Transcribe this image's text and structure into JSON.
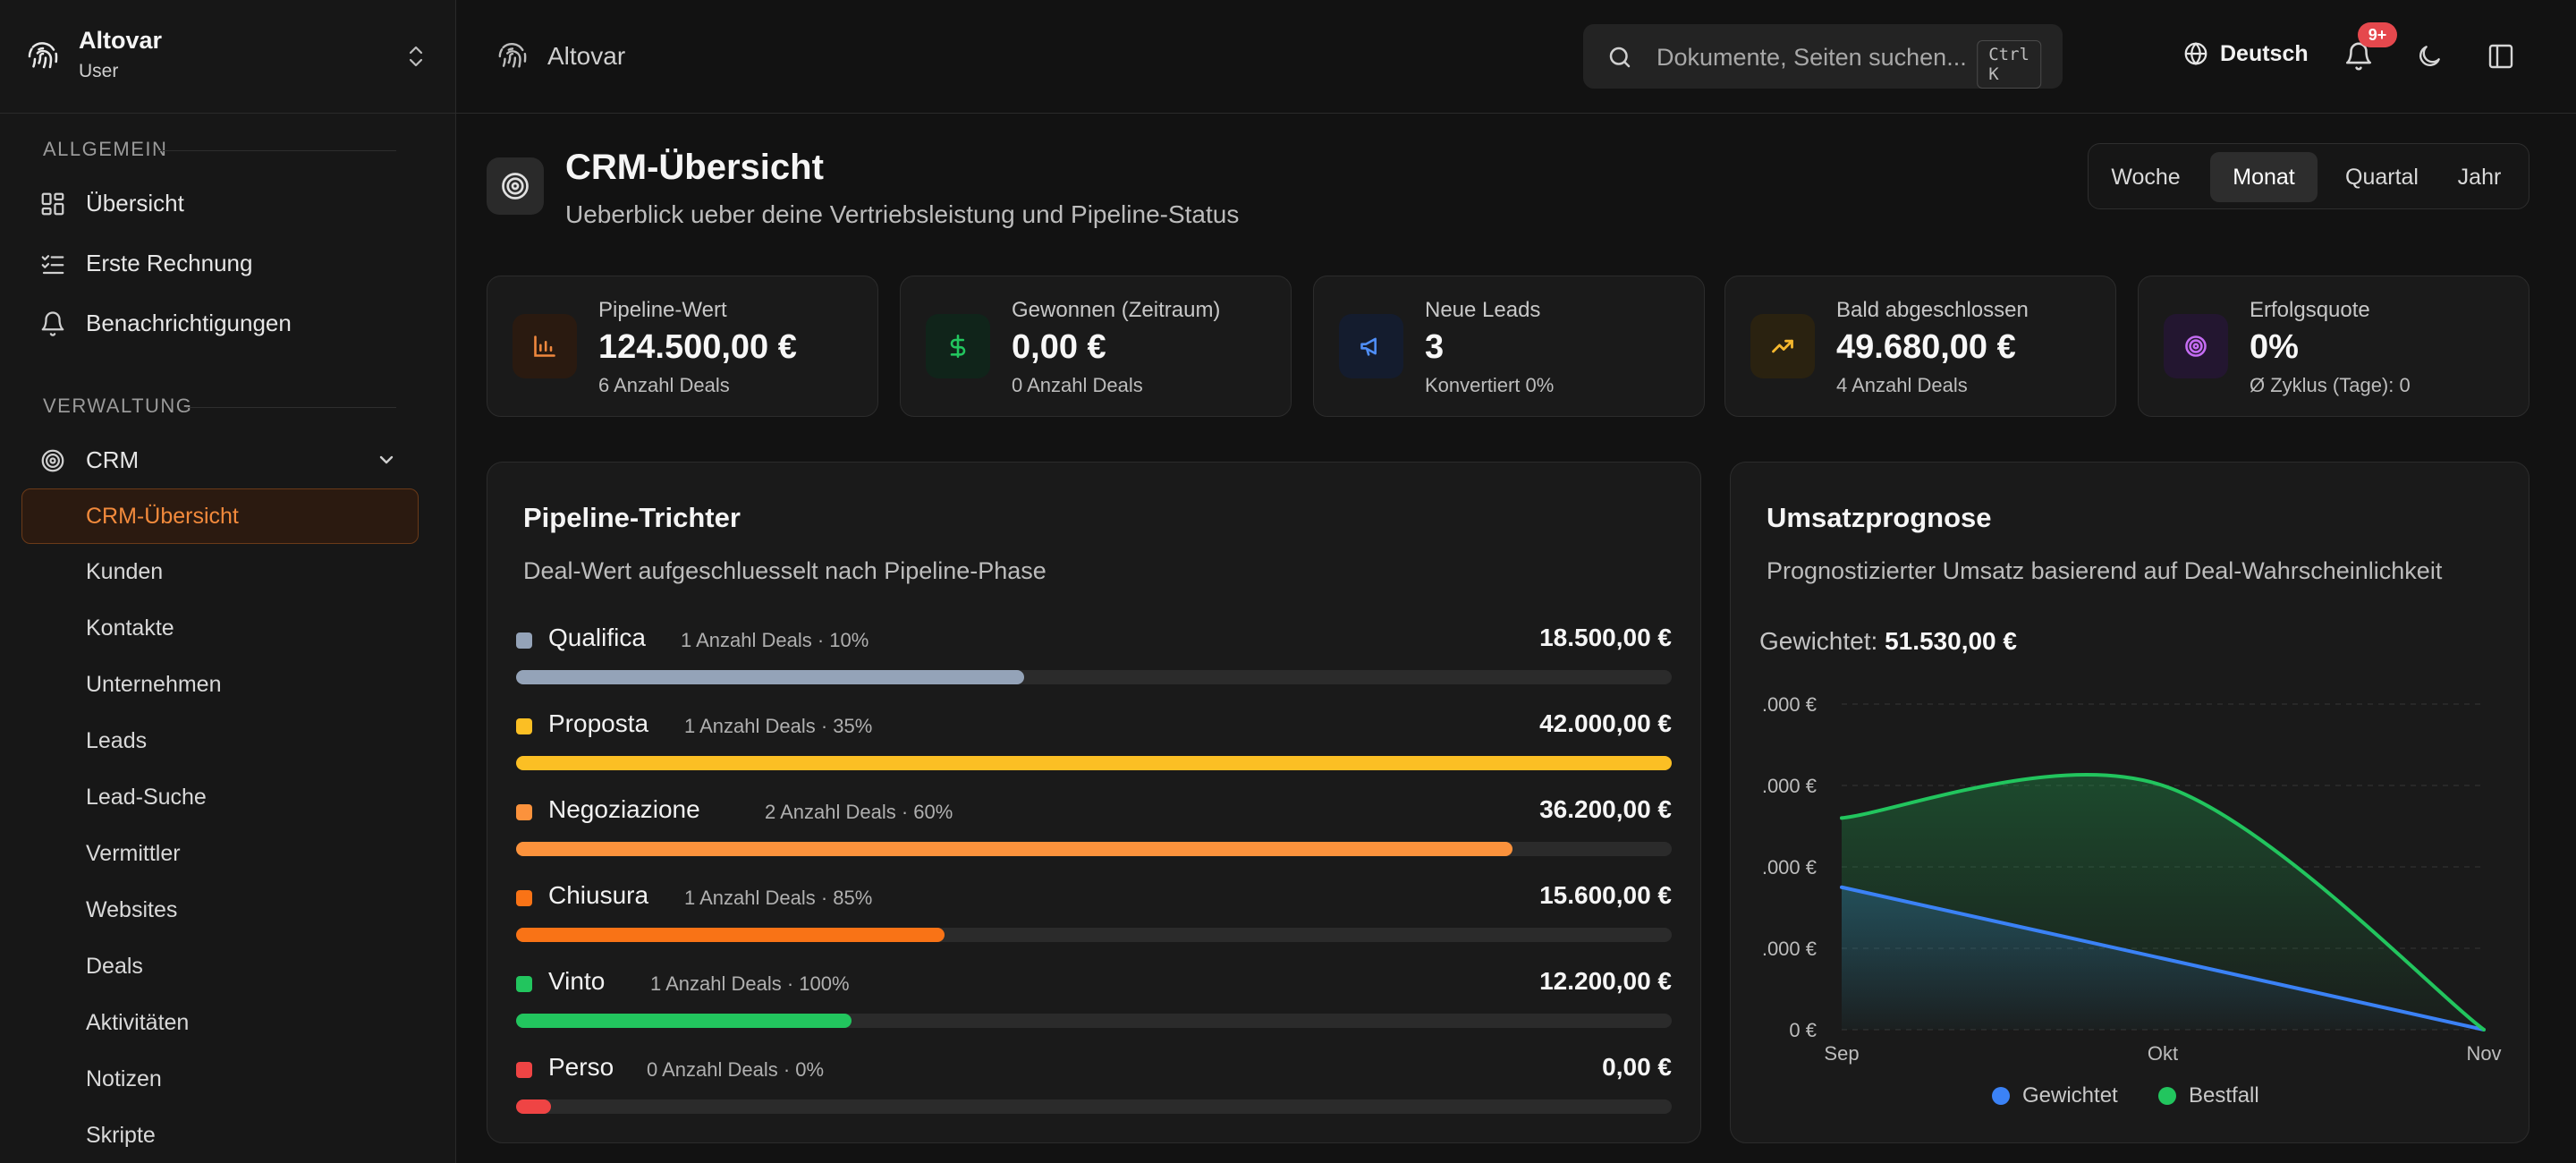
{
  "workspace": {
    "name": "Altovar",
    "role": "User"
  },
  "sidebar": {
    "section_general": "Allgemein",
    "general_items": [
      {
        "label": "Übersicht",
        "icon": "dashboard-icon"
      },
      {
        "label": "Erste Rechnung",
        "icon": "checklist-icon"
      },
      {
        "label": "Benachrichtigungen",
        "icon": "bell-icon"
      }
    ],
    "section_admin": "Verwaltung",
    "crm_label": "CRM",
    "crm_items": [
      {
        "label": "CRM-Übersicht",
        "active": true
      },
      {
        "label": "Kunden"
      },
      {
        "label": "Kontakte"
      },
      {
        "label": "Unternehmen"
      },
      {
        "label": "Leads"
      },
      {
        "label": "Lead-Suche"
      },
      {
        "label": "Vermittler"
      },
      {
        "label": "Websites"
      },
      {
        "label": "Deals"
      },
      {
        "label": "Aktivitäten"
      },
      {
        "label": "Notizen"
      },
      {
        "label": "Skripte"
      }
    ]
  },
  "header": {
    "title": "Altovar",
    "search_placeholder": "Dokumente, Seiten suchen...",
    "search_shortcut": "Ctrl K",
    "language": "Deutsch",
    "notification_badge": "9+"
  },
  "page": {
    "title": "CRM-Übersicht",
    "subtitle": "Ueberblick ueber deine Vertriebsleistung und Pipeline-Status",
    "periods": [
      "Woche",
      "Monat",
      "Quartal",
      "Jahr"
    ],
    "active_period": "Monat"
  },
  "kpis": [
    {
      "label": "Pipeline-Wert",
      "value": "124.500,00 €",
      "sub": "6 Anzahl Deals",
      "icon": "bar-chart-icon",
      "color": "#f0883e",
      "bg": "#2a1a10"
    },
    {
      "label": "Gewonnen (Zeitraum)",
      "value": "0,00 €",
      "sub": "0 Anzahl Deals",
      "icon": "dollar-icon",
      "color": "#22c55e",
      "bg": "#10241a"
    },
    {
      "label": "Neue Leads",
      "value": "3",
      "sub": "Konvertiert 0%",
      "icon": "megaphone-icon",
      "color": "#4f8ef7",
      "bg": "#141c2e"
    },
    {
      "label": "Bald abgeschlossen",
      "value": "49.680,00 €",
      "sub": "4 Anzahl Deals",
      "icon": "trending-up-icon",
      "color": "#f5b82e",
      "bg": "#2a2210"
    },
    {
      "label": "Erfolgsquote",
      "value": "0%",
      "sub": "Ø Zyklus (Tage): 0",
      "icon": "target-icon",
      "color": "#c46cf2",
      "bg": "#231630"
    }
  ],
  "funnel": {
    "title": "Pipeline-Trichter",
    "subtitle": "Deal-Wert aufgeschluesselt nach Pipeline-Phase",
    "stages": [
      {
        "name": "Qualifica",
        "meta": "1 Anzahl Deals · 10%",
        "value": "18.500,00 €",
        "fraction": 0.44,
        "color": "#94a3b8"
      },
      {
        "name": "Proposta",
        "meta": "1 Anzahl Deals · 35%",
        "value": "42.000,00 €",
        "fraction": 1.0,
        "color": "#fbbf24"
      },
      {
        "name": "Negoziazione",
        "meta": "2 Anzahl Deals · 60%",
        "value": "36.200,00 €",
        "fraction": 0.862,
        "color": "#fb923c"
      },
      {
        "name": "Chiusura",
        "meta": "1 Anzahl Deals · 85%",
        "value": "15.600,00 €",
        "fraction": 0.371,
        "color": "#f97316"
      },
      {
        "name": "Vinto",
        "meta": "1 Anzahl Deals · 100%",
        "value": "12.200,00 €",
        "fraction": 0.29,
        "color": "#22c55e"
      },
      {
        "name": "Perso",
        "meta": "0 Anzahl Deals · 0%",
        "value": "0,00 €",
        "fraction": 0.03,
        "color": "#ef4444"
      }
    ]
  },
  "forecast": {
    "title": "Umsatzprognose",
    "subtitle": "Prognostizierter Umsatz basierend auf Deal-Wahrscheinlichkeit",
    "weighted_label": "Gewichtet:",
    "weighted_value": "51.530,00 €"
  },
  "chart_data": {
    "type": "area",
    "categories": [
      "Sep",
      "Okt",
      "Nov"
    ],
    "y_tick_labels": [
      ".000 €",
      ".000 €",
      ".000 €",
      ".000 €",
      "0 €"
    ],
    "ylim": [
      0,
      80000
    ],
    "series": [
      {
        "name": "Gewichtet",
        "color": "#3b82f6",
        "values": [
          35000,
          17500,
          0
        ]
      },
      {
        "name": "Bestfall",
        "color": "#22c55e",
        "values": [
          52000,
          60000,
          0
        ]
      }
    ],
    "legend": "bottom-center",
    "grid": true
  }
}
